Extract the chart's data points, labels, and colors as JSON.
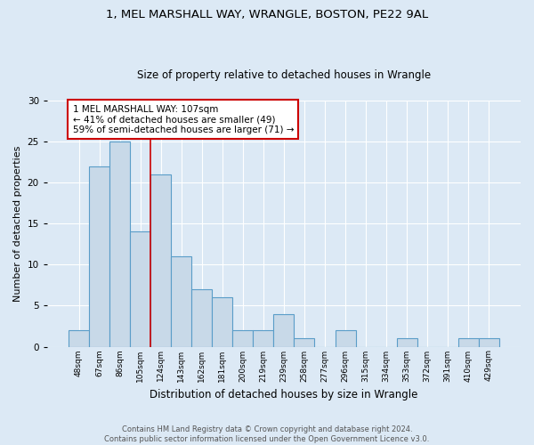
{
  "title1": "1, MEL MARSHALL WAY, WRANGLE, BOSTON, PE22 9AL",
  "title2": "Size of property relative to detached houses in Wrangle",
  "xlabel": "Distribution of detached houses by size in Wrangle",
  "ylabel": "Number of detached properties",
  "footnote": "Contains HM Land Registry data © Crown copyright and database right 2024.\nContains public sector information licensed under the Open Government Licence v3.0.",
  "bin_labels": [
    "48sqm",
    "67sqm",
    "86sqm",
    "105sqm",
    "124sqm",
    "143sqm",
    "162sqm",
    "181sqm",
    "200sqm",
    "219sqm",
    "239sqm",
    "258sqm",
    "277sqm",
    "296sqm",
    "315sqm",
    "334sqm",
    "353sqm",
    "372sqm",
    "391sqm",
    "410sqm",
    "429sqm"
  ],
  "bar_values": [
    2,
    22,
    25,
    14,
    21,
    11,
    7,
    6,
    2,
    2,
    4,
    1,
    0,
    2,
    0,
    0,
    1,
    0,
    0,
    1,
    1
  ],
  "bar_color": "#c8d9e8",
  "bar_edge_color": "#5a9dc8",
  "ylim": [
    0,
    30
  ],
  "yticks": [
    0,
    5,
    10,
    15,
    20,
    25,
    30
  ],
  "property_line_x": 3.5,
  "annotation_text": "1 MEL MARSHALL WAY: 107sqm\n← 41% of detached houses are smaller (49)\n59% of semi-detached houses are larger (71) →",
  "annotation_box_color": "#ffffff",
  "annotation_box_edge": "#cc0000",
  "line_color": "#cc0000",
  "bg_color": "#dce9f5",
  "title1_fontsize": 9.5,
  "title2_fontsize": 8.5,
  "xlabel_fontsize": 8.5,
  "ylabel_fontsize": 8,
  "annot_fontsize": 7.5
}
